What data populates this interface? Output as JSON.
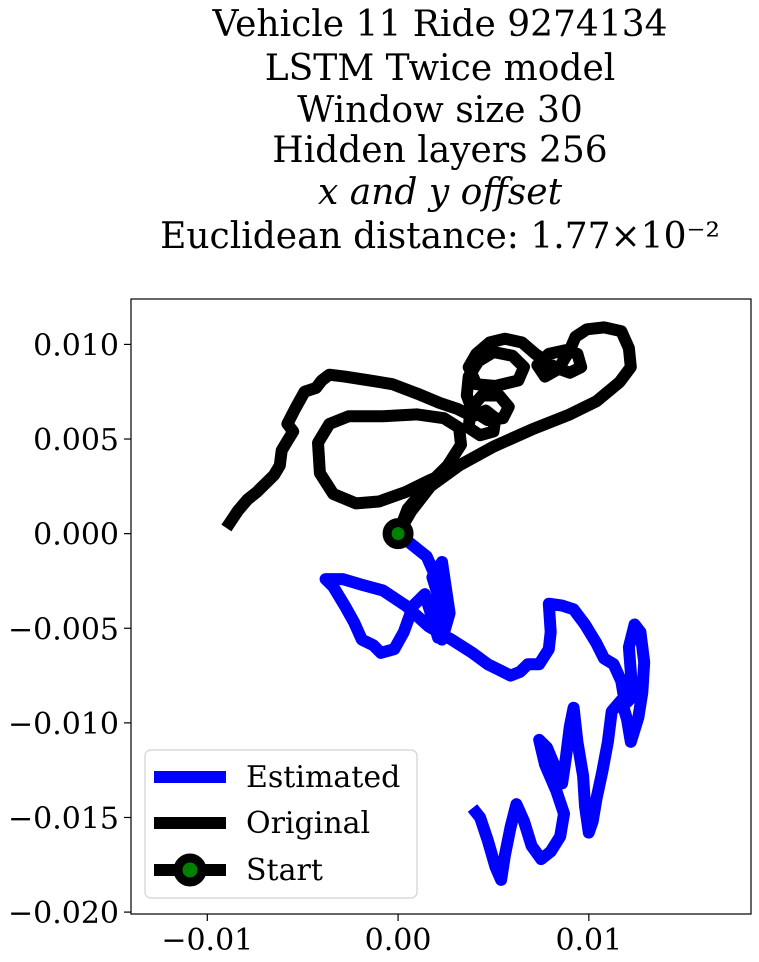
{
  "chart_data": {
    "type": "line",
    "title_lines": [
      "Vehicle 11 Ride 9274134",
      "LSTM Twice model",
      "Window size 30",
      "Hidden layers 256",
      "x and y offset",
      "Euclidean distance: 1.77×10⁻²"
    ],
    "xlabel": "",
    "ylabel": "",
    "xlim": [
      -0.014,
      0.0185
    ],
    "ylim": [
      -0.0201,
      0.0124
    ],
    "x_ticks": [
      -0.01,
      0.0,
      0.01
    ],
    "x_tick_labels": [
      "−0.01",
      "0.00",
      "0.01"
    ],
    "y_ticks": [
      0.01,
      0.005,
      0.0,
      -0.005,
      -0.01,
      -0.015,
      -0.02
    ],
    "y_tick_labels": [
      "0.010",
      "0.005",
      "0.000",
      "−0.005",
      "−0.010",
      "−0.015",
      "−0.020"
    ],
    "grid": false,
    "legend_position": "lower-left",
    "series": [
      {
        "name": "Estimated",
        "color": "#0000ff",
        "points": [
          [
            0.0,
            0.0
          ],
          [
            0.0015,
            -0.0012
          ],
          [
            0.0022,
            -0.0028
          ],
          [
            0.0017,
            -0.0042
          ],
          [
            0.0021,
            -0.0055
          ],
          [
            0.0022,
            -0.0036
          ],
          [
            0.0018,
            -0.0023
          ],
          [
            0.0023,
            -0.0015
          ],
          [
            0.0027,
            -0.0042
          ],
          [
            0.0023,
            -0.0056
          ],
          [
            0.0019,
            -0.0048
          ],
          [
            0.0014,
            -0.0032
          ],
          [
            0.0008,
            -0.0038
          ],
          [
            0.0003,
            -0.0052
          ],
          [
            -0.0002,
            -0.0061
          ],
          [
            -0.0009,
            -0.0063
          ],
          [
            -0.0013,
            -0.0059
          ],
          [
            -0.0019,
            -0.0056
          ],
          [
            -0.0023,
            -0.0047
          ],
          [
            -0.0028,
            -0.0038
          ],
          [
            -0.0034,
            -0.0028
          ],
          [
            -0.0038,
            -0.0024
          ],
          [
            -0.0029,
            -0.0024
          ],
          [
            -0.0019,
            -0.0027
          ],
          [
            -0.0008,
            -0.003
          ],
          [
            0.0004,
            -0.0038
          ],
          [
            0.0016,
            -0.0049
          ],
          [
            0.0028,
            -0.0056
          ],
          [
            0.0039,
            -0.0063
          ],
          [
            0.0047,
            -0.0069
          ],
          [
            0.0053,
            -0.0072
          ],
          [
            0.0059,
            -0.0075
          ],
          [
            0.0064,
            -0.0073
          ],
          [
            0.0068,
            -0.0069
          ],
          [
            0.0074,
            -0.0069
          ],
          [
            0.0079,
            -0.0061
          ],
          [
            0.008,
            -0.0052
          ],
          [
            0.0079,
            -0.0037
          ],
          [
            0.0086,
            -0.0038
          ],
          [
            0.0092,
            -0.004
          ],
          [
            0.0098,
            -0.0048
          ],
          [
            0.0104,
            -0.0058
          ],
          [
            0.0108,
            -0.0066
          ],
          [
            0.0113,
            -0.0069
          ],
          [
            0.0117,
            -0.0078
          ],
          [
            0.0119,
            -0.009
          ],
          [
            0.0123,
            -0.0086
          ],
          [
            0.0121,
            -0.006
          ],
          [
            0.0124,
            -0.0048
          ],
          [
            0.0127,
            -0.0052
          ],
          [
            0.0129,
            -0.0068
          ],
          [
            0.0128,
            -0.0084
          ],
          [
            0.0126,
            -0.0097
          ],
          [
            0.0122,
            -0.011
          ],
          [
            0.012,
            -0.0098
          ],
          [
            0.0117,
            -0.0088
          ],
          [
            0.0112,
            -0.0094
          ],
          [
            0.011,
            -0.011
          ],
          [
            0.0107,
            -0.0126
          ],
          [
            0.0104,
            -0.014
          ],
          [
            0.0102,
            -0.0152
          ],
          [
            0.01,
            -0.0158
          ],
          [
            0.0098,
            -0.0144
          ],
          [
            0.0097,
            -0.0128
          ],
          [
            0.0094,
            -0.011
          ],
          [
            0.0092,
            -0.0092
          ],
          [
            0.009,
            -0.0102
          ],
          [
            0.0088,
            -0.0118
          ],
          [
            0.0086,
            -0.0132
          ],
          [
            0.0083,
            -0.0125
          ],
          [
            0.0078,
            -0.0113
          ],
          [
            0.0074,
            -0.0109
          ],
          [
            0.0077,
            -0.0122
          ],
          [
            0.0083,
            -0.0136
          ],
          [
            0.0087,
            -0.0148
          ],
          [
            0.0085,
            -0.016
          ],
          [
            0.008,
            -0.0168
          ],
          [
            0.0075,
            -0.0172
          ],
          [
            0.007,
            -0.0165
          ],
          [
            0.0066,
            -0.0152
          ],
          [
            0.0062,
            -0.0143
          ],
          [
            0.0059,
            -0.0155
          ],
          [
            0.0056,
            -0.017
          ],
          [
            0.0054,
            -0.0183
          ],
          [
            0.0051,
            -0.0176
          ],
          [
            0.0047,
            -0.0162
          ],
          [
            0.0043,
            -0.015
          ],
          [
            0.0039,
            -0.0145
          ]
        ]
      },
      {
        "name": "Original",
        "color": "#000000",
        "points": [
          [
            0.0,
            0.0
          ],
          [
            0.0007,
            0.0012
          ],
          [
            0.0017,
            0.0025
          ],
          [
            0.0032,
            0.0036
          ],
          [
            0.005,
            0.0046
          ],
          [
            0.007,
            0.0055
          ],
          [
            0.009,
            0.0063
          ],
          [
            0.0104,
            0.007
          ],
          [
            0.0116,
            0.008
          ],
          [
            0.0122,
            0.0088
          ],
          [
            0.0121,
            0.0098
          ],
          [
            0.0117,
            0.0107
          ],
          [
            0.0108,
            0.0109
          ],
          [
            0.0099,
            0.0108
          ],
          [
            0.0093,
            0.0104
          ],
          [
            0.009,
            0.0097
          ],
          [
            0.0084,
            0.0087
          ],
          [
            0.0077,
            0.0083
          ],
          [
            0.0073,
            0.0089
          ],
          [
            0.0079,
            0.0095
          ],
          [
            0.0088,
            0.0097
          ],
          [
            0.0094,
            0.0095
          ],
          [
            0.0096,
            0.0088
          ],
          [
            0.009,
            0.0085
          ],
          [
            0.0082,
            0.0088
          ],
          [
            0.0072,
            0.0095
          ],
          [
            0.0065,
            0.0101
          ],
          [
            0.0056,
            0.0103
          ],
          [
            0.0048,
            0.0101
          ],
          [
            0.0041,
            0.0095
          ],
          [
            0.0037,
            0.0088
          ],
          [
            0.0041,
            0.0079
          ],
          [
            0.0051,
            0.0078
          ],
          [
            0.0063,
            0.0081
          ],
          [
            0.0066,
            0.0088
          ],
          [
            0.006,
            0.0094
          ],
          [
            0.005,
            0.0096
          ],
          [
            0.0042,
            0.0091
          ],
          [
            0.0037,
            0.0083
          ],
          [
            0.0036,
            0.0073
          ],
          [
            0.0039,
            0.0065
          ],
          [
            0.0047,
            0.006
          ],
          [
            0.0055,
            0.0061
          ],
          [
            0.0058,
            0.0067
          ],
          [
            0.0053,
            0.0073
          ],
          [
            0.0044,
            0.0073
          ],
          [
            0.0038,
            0.0066
          ],
          [
            0.0037,
            0.0056
          ],
          [
            0.0043,
            0.0052
          ],
          [
            0.005,
            0.0054
          ],
          [
            0.0051,
            0.0061
          ],
          [
            0.0046,
            0.0065
          ],
          [
            0.0039,
            0.0062
          ],
          [
            0.0031,
            0.0066
          ],
          [
            0.0022,
            0.0069
          ],
          [
            0.001,
            0.0074
          ],
          [
            -0.0003,
            0.0079
          ],
          [
            -0.0015,
            0.0081
          ],
          [
            -0.0028,
            0.0083
          ],
          [
            -0.0036,
            0.0084
          ],
          [
            -0.004,
            0.0081
          ],
          [
            -0.0043,
            0.0077
          ],
          [
            -0.0049,
            0.0075
          ],
          [
            -0.0054,
            0.0066
          ],
          [
            -0.0058,
            0.0058
          ],
          [
            -0.0055,
            0.0054
          ],
          [
            -0.0058,
            0.0049
          ],
          [
            -0.0061,
            0.0044
          ],
          [
            -0.0062,
            0.0036
          ],
          [
            -0.0065,
            0.0031
          ],
          [
            -0.0069,
            0.0027
          ],
          [
            -0.0074,
            0.0022
          ],
          [
            -0.0079,
            0.0018
          ],
          [
            -0.0084,
            0.0012
          ],
          [
            -0.0088,
            0.0006
          ],
          [
            -0.009,
            0.0003
          ]
        ],
        "loop_points": [
          [
            0.0,
            0.0
          ],
          [
            0.0005,
            0.0013
          ],
          [
            0.0015,
            0.0025
          ],
          [
            0.0026,
            0.0036
          ],
          [
            0.0033,
            0.0047
          ],
          [
            0.0032,
            0.0056
          ],
          [
            0.0024,
            0.0061
          ],
          [
            0.001,
            0.0063
          ],
          [
            -0.0008,
            0.0062
          ],
          [
            -0.0026,
            0.0062
          ],
          [
            -0.0036,
            0.0058
          ],
          [
            -0.0042,
            0.0048
          ],
          [
            -0.0041,
            0.0032
          ],
          [
            -0.0034,
            0.0021
          ],
          [
            -0.0022,
            0.0016
          ],
          [
            -0.001,
            0.0017
          ],
          [
            0.0004,
            0.0022
          ],
          [
            0.0016,
            0.0028
          ],
          [
            0.0025,
            0.0032
          ]
        ]
      }
    ],
    "start": {
      "name": "Start",
      "x": 0.0,
      "y": 0.0,
      "edge_color": "#000000",
      "face_color": "#008000"
    },
    "legend": [
      "Estimated",
      "Original",
      "Start"
    ]
  }
}
